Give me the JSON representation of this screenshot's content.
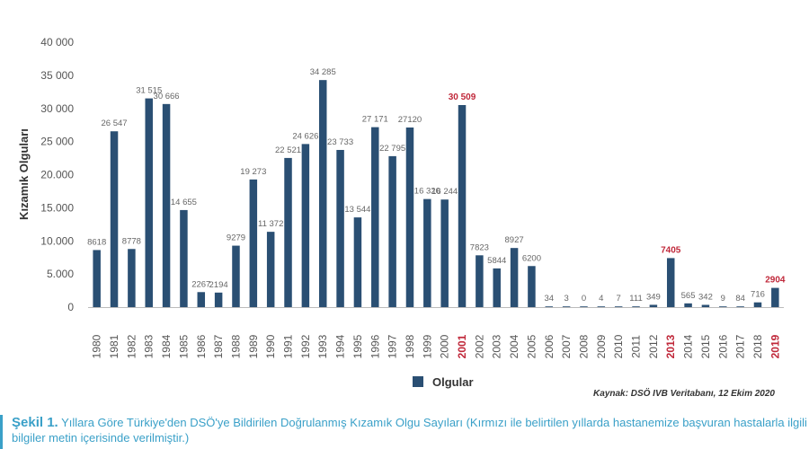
{
  "chart_data": {
    "type": "bar",
    "title": "",
    "xlabel": "",
    "ylabel": "Kızamık Olguları",
    "ylim": [
      0,
      40000
    ],
    "y_ticks": [
      0,
      5000,
      10000,
      15000,
      20000,
      25000,
      30000,
      35000,
      40000
    ],
    "y_tick_labels": [
      "0",
      "5.000",
      "10.000",
      "15.000",
      "20.000",
      "25 000",
      "30 000",
      "35 000",
      "40 000"
    ],
    "categories": [
      "1980",
      "1981",
      "1982",
      "1983",
      "1984",
      "1985",
      "1986",
      "1987",
      "1988",
      "1989",
      "1990",
      "1991",
      "1992",
      "1993",
      "1994",
      "1995",
      "1996",
      "1997",
      "1998",
      "1999",
      "2000",
      "2001",
      "2002",
      "2003",
      "2004",
      "2005",
      "2006",
      "2007",
      "2008",
      "2009",
      "2010",
      "2011",
      "2012",
      "2013",
      "2014",
      "2015",
      "2016",
      "2017",
      "2018",
      "2019"
    ],
    "series": [
      {
        "name": "Olgular",
        "values": [
          8618,
          26547,
          8778,
          31515,
          30666,
          14655,
          2267,
          2194,
          9279,
          19273,
          11372,
          22521,
          24626,
          34285,
          23733,
          13544,
          27171,
          22795,
          27120,
          16320,
          16244,
          30509,
          7823,
          5844,
          8927,
          6200,
          34,
          3,
          0,
          4,
          7,
          111,
          349,
          7405,
          565,
          342,
          9,
          84,
          716,
          2904
        ],
        "labels": [
          "8618",
          "26 547",
          "8778",
          "31 515",
          "30 666",
          "14 655",
          "2267",
          "2194",
          "9279",
          "19 273",
          "11 372",
          "22 521",
          "24 626",
          "34 285",
          "23 733",
          "13 544",
          "27 171",
          "22 795",
          "27120",
          "16 320",
          "16 244",
          "30 509",
          "7823",
          "5844",
          "8927",
          "6200",
          "34",
          "3",
          "0",
          "4",
          "7",
          "111",
          "349",
          "7405",
          "565",
          "342",
          "9",
          "84",
          "716",
          "2904"
        ]
      }
    ],
    "highlighted_categories": [
      "2001",
      "2013",
      "2019"
    ],
    "legend": {
      "label": "Olgular",
      "position": "bottom-center"
    },
    "grid": false
  },
  "colors": {
    "bar": "#2a4f73",
    "highlight": "#c0283a",
    "axis": "#bbbbbb",
    "tick_text": "#555555",
    "caption": "#3aa0c8"
  },
  "source": "Kaynak: DSÖ IVB Veritabanı, 12 Ekim 2020",
  "caption": {
    "figure_label": "Şekil 1.",
    "text": "Yıllara Göre Türkiye'den DSÖ'ye Bildirilen Doğrulanmış Kızamık Olgu Sayıları (Kırmızı ile belirtilen yıllarda hastanemize başvuran hastalarla ilgili bilgiler metin içerisinde verilmiştir.)"
  }
}
